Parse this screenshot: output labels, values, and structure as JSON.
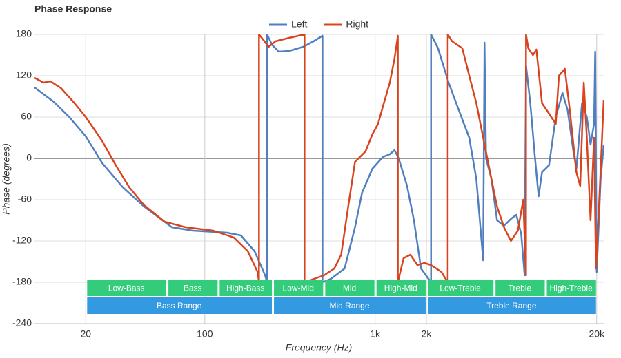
{
  "chart_data": {
    "type": "line",
    "title": "Phase Response",
    "x_label": "Frequency (Hz)",
    "y_label": "Phase (degrees)",
    "log_x": true,
    "grid": true,
    "legend": "top",
    "xlim": [
      10,
      22000
    ],
    "ylim": [
      -240,
      180
    ],
    "xticks": [
      20,
      100,
      {
        "value": 1000,
        "label": "1k"
      },
      {
        "value": 2000,
        "label": "2k"
      },
      {
        "value": 20000,
        "label": "20k"
      }
    ],
    "yticks": [
      180,
      120,
      60,
      0,
      -60,
      -120,
      -180,
      -240
    ],
    "series": [
      {
        "name": "Left",
        "color": "#4f7fbf",
        "x": [
          10,
          13,
          16,
          20,
          25,
          33,
          44,
          64,
          85,
          135,
          163,
          196,
          226,
          232,
          232,
          248,
          272,
          313,
          378,
          435,
          491,
          491,
          550,
          662,
          762,
          838,
          964,
          1110,
          1220,
          1300,
          1375,
          1540,
          1690,
          1860,
          2130,
          2130,
          2340,
          2700,
          3100,
          3570,
          3930,
          4310,
          4390,
          4480,
          4820,
          5200,
          5710,
          6270,
          6750,
          7210,
          7550,
          7690,
          8150,
          8690,
          9120,
          9550,
          10500,
          11500,
          12600,
          13500,
          14600,
          15200,
          16400,
          17500,
          18400,
          19300,
          19600,
          20000,
          21100,
          22000
        ],
        "values": [
          103,
          82,
          60,
          32,
          -7,
          -42,
          -70,
          -100,
          -105,
          -108,
          -112,
          -135,
          -170,
          -180,
          180,
          165,
          155,
          156,
          162,
          170,
          178,
          -180,
          -175,
          -160,
          -100,
          -50,
          -15,
          2,
          6,
          12,
          0,
          -40,
          -90,
          -160,
          -180,
          180,
          160,
          110,
          70,
          30,
          -30,
          -148,
          168,
          0,
          -30,
          -90,
          -98,
          -88,
          -82,
          -110,
          -170,
          135,
          80,
          0,
          -55,
          -20,
          -10,
          60,
          95,
          70,
          10,
          -15,
          80,
          60,
          20,
          50,
          155,
          -165,
          -30,
          20
        ]
      },
      {
        "name": "Right",
        "color": "#d9441f",
        "x": [
          10,
          11.3,
          12.4,
          14.3,
          17.2,
          20,
          25,
          30,
          36,
          44,
          58,
          77,
          112,
          148,
          179,
          204,
          208,
          208,
          216,
          237,
          260,
          313,
          385,
          385,
          500,
          576,
          632,
          695,
          762,
          878,
          964,
          1040,
          1110,
          1220,
          1300,
          1360,
          1360,
          1470,
          1610,
          1770,
          1950,
          2130,
          2450,
          2670,
          2670,
          2830,
          3250,
          3570,
          3930,
          4310,
          4730,
          5200,
          5710,
          6270,
          6890,
          7410,
          7690,
          7690,
          7930,
          8450,
          8850,
          9550,
          10500,
          11500,
          12000,
          13000,
          13900,
          15200,
          16000,
          16800,
          17500,
          18400,
          19300,
          19800,
          20800,
          22000
        ],
        "values": [
          117,
          110,
          112,
          102,
          80,
          60,
          25,
          -10,
          -42,
          -68,
          -92,
          -100,
          -105,
          -115,
          -135,
          -165,
          -180,
          180,
          175,
          162,
          170,
          175,
          180,
          -180,
          -170,
          -160,
          -140,
          -70,
          -5,
          10,
          35,
          50,
          75,
          110,
          145,
          178,
          -180,
          -145,
          -140,
          -155,
          -152,
          -155,
          -165,
          -180,
          180,
          170,
          160,
          120,
          80,
          30,
          -20,
          -70,
          -100,
          -120,
          -105,
          -60,
          -170,
          180,
          160,
          150,
          158,
          80,
          65,
          50,
          120,
          130,
          70,
          -20,
          -40,
          110,
          30,
          -90,
          30,
          -160,
          -50,
          85
        ]
      }
    ],
    "band_color": "#33cc7a",
    "bands": [
      {
        "label": "Low-Bass",
        "from": 20,
        "to": 60
      },
      {
        "label": "Bass",
        "from": 60,
        "to": 120
      },
      {
        "label": "High-Bass",
        "from": 120,
        "to": 250
      },
      {
        "label": "Low-Mid",
        "from": 250,
        "to": 500
      },
      {
        "label": "Mid",
        "from": 500,
        "to": 1000
      },
      {
        "label": "High-Mid",
        "from": 1000,
        "to": 2000
      },
      {
        "label": "Low-Treble",
        "from": 2000,
        "to": 5000
      },
      {
        "label": "Treble",
        "from": 5000,
        "to": 10000
      },
      {
        "label": "High-Treble",
        "from": 10000,
        "to": 20000
      }
    ],
    "range_color": "#3399e0",
    "ranges": [
      {
        "label": "Bass Range",
        "from": 20,
        "to": 250
      },
      {
        "label": "Mid Range",
        "from": 250,
        "to": 2000
      },
      {
        "label": "Treble Range",
        "from": 2000,
        "to": 20000
      }
    ]
  }
}
